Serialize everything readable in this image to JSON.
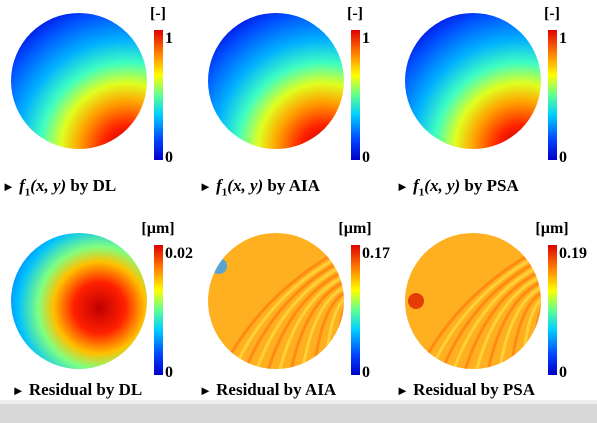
{
  "panels": [
    {
      "unit": "[-]",
      "max": 1,
      "min": 0,
      "caption": {
        "symbol": "f",
        "subscript": "1",
        "args": "(x, y)",
        "method": "by DL"
      }
    },
    {
      "unit": "[-]",
      "max": 1,
      "min": 0,
      "caption": {
        "symbol": "f",
        "subscript": "1",
        "args": "(x, y)",
        "method": "by AIA"
      }
    },
    {
      "unit": "[-]",
      "max": 1,
      "min": 0,
      "caption": {
        "symbol": "f",
        "subscript": "1",
        "args": "(x, y)",
        "method": "by PSA"
      }
    },
    {
      "unit": "[µm]",
      "max": 0.02,
      "min": 0,
      "caption": {
        "text": "Residual by DL"
      }
    },
    {
      "unit": "[µm]",
      "max": 0.17,
      "min": 0,
      "caption": {
        "text": "Residual by AIA"
      }
    },
    {
      "unit": "[µm]",
      "max": 0.19,
      "min": 0,
      "caption": {
        "text": "Residual by PSA"
      }
    }
  ]
}
